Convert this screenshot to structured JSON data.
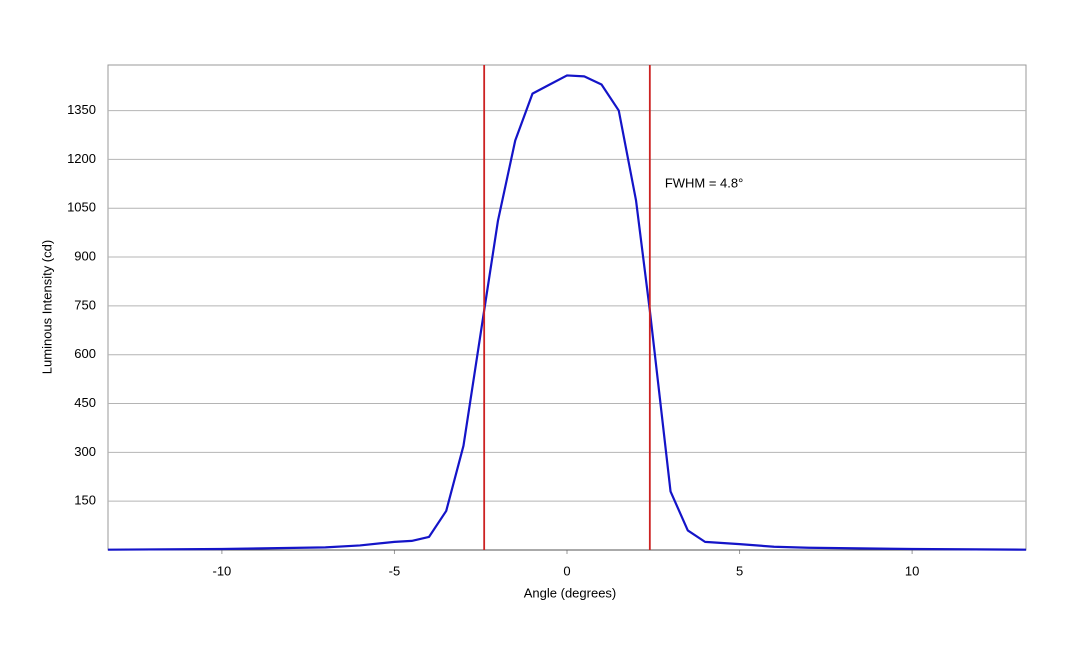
{
  "chart_data": {
    "type": "line",
    "x_label": "Angle (degrees)",
    "y_label": "Luminous Intensity (cd)",
    "x": [
      -13.3,
      -10,
      -7,
      -6,
      -5,
      -4.5,
      -4,
      -3.5,
      -3,
      -2.4,
      -2,
      -1.5,
      -1,
      -0.5,
      0,
      0.5,
      1,
      1.5,
      2,
      2.4,
      3,
      3.5,
      4,
      5,
      6,
      7,
      10,
      13.3
    ],
    "series": [
      {
        "name": "Luminous Intensity",
        "color": "#1414c8",
        "values": [
          1,
          3,
          8,
          14,
          25,
          28,
          40,
          120,
          320,
          736,
          1012,
          1258,
          1402,
          1430,
          1458,
          1455,
          1430,
          1350,
          1074,
          736,
          180,
          60,
          25,
          18,
          10,
          7,
          3,
          1
        ]
      }
    ],
    "vlines": [
      -2.4,
      2.4
    ],
    "vline_color": "#cc2222",
    "annotation": "FWHM = 4.8°",
    "xlim": [
      -13.3,
      13.3
    ],
    "xticks": [
      -10,
      -5,
      0,
      5,
      10
    ],
    "ylim": [
      0,
      1490
    ],
    "yticks": [
      150,
      300,
      450,
      600,
      750,
      900,
      1050,
      1200,
      1350
    ],
    "grid": true
  }
}
